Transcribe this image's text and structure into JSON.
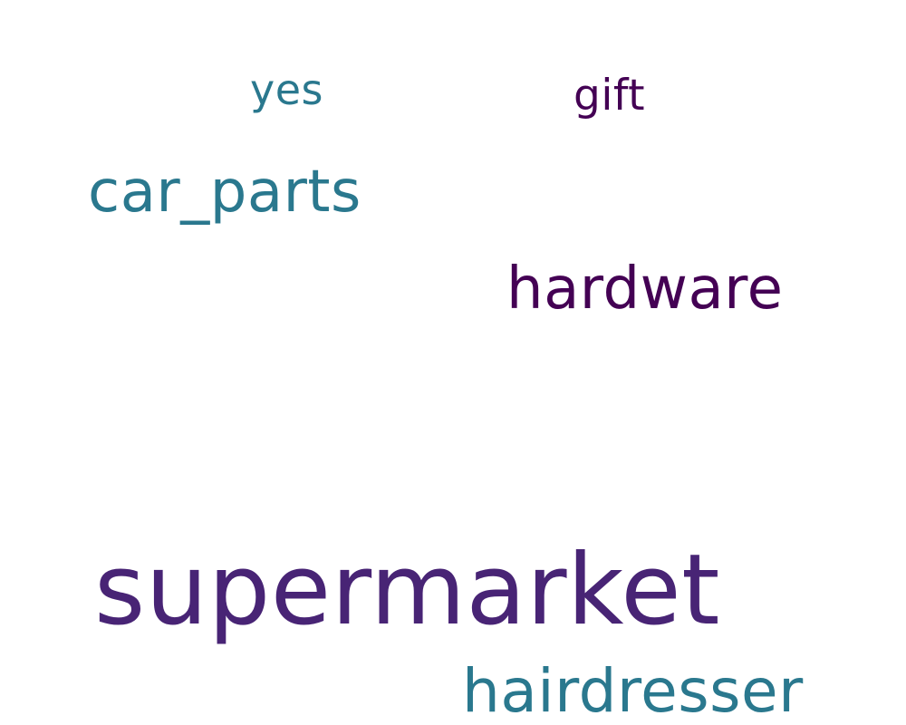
{
  "words": [
    {
      "key": "yes",
      "text": "yes",
      "color": "#2a788e"
    },
    {
      "key": "gift",
      "text": "gift",
      "color": "#440154"
    },
    {
      "key": "carparts",
      "text": "car_parts",
      "color": "#2a788e"
    },
    {
      "key": "hardware",
      "text": "hardware",
      "color": "#440154"
    },
    {
      "key": "super",
      "text": "supermarket",
      "color": "#482475"
    },
    {
      "key": "hair",
      "text": "hairdresser",
      "color": "#2a788e"
    }
  ]
}
